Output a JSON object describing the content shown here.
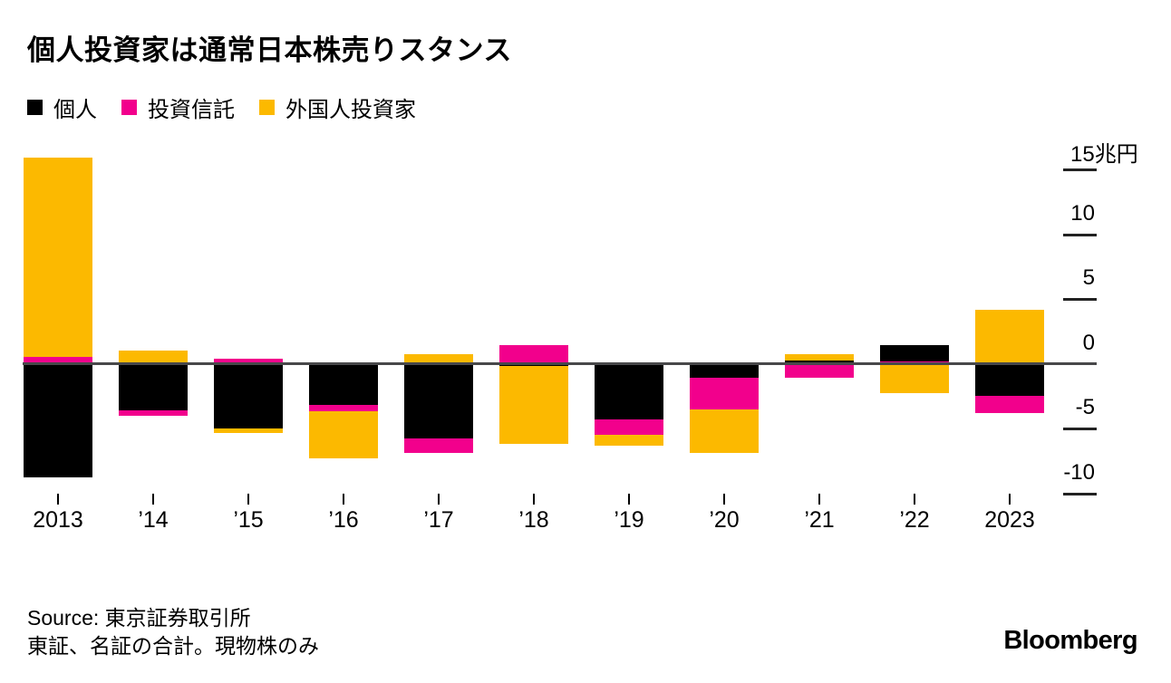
{
  "title": "個人投資家は通常日本株売りスタンス",
  "legend": [
    {
      "key": "individual",
      "label": "個人",
      "color": "#000000"
    },
    {
      "key": "trusts",
      "label": "投資信託",
      "color": "#F2008C"
    },
    {
      "key": "foreign",
      "label": "外国人投資家",
      "color": "#FCB900"
    }
  ],
  "chart_data": {
    "type": "bar",
    "stacked": true,
    "title": "個人投資家は通常日本株売りスタンス",
    "value_unit": "兆円",
    "categories": [
      "2013",
      "’14",
      "’15",
      "’16",
      "’17",
      "’18",
      "’19",
      "’20",
      "’21",
      "’22",
      "2023"
    ],
    "series": [
      {
        "key": "individual",
        "name": "個人",
        "color": "#000000",
        "values": [
          -8.8,
          -3.6,
          -5.0,
          -3.2,
          -5.8,
          -0.2,
          -4.3,
          -1.1,
          0.25,
          1.2,
          -2.5
        ]
      },
      {
        "key": "trusts",
        "name": "投資信託",
        "color": "#F2008C",
        "values": [
          0.5,
          -0.4,
          0.4,
          -0.45,
          -1.1,
          1.4,
          -1.2,
          -2.4,
          -1.05,
          0.2,
          -1.3
        ]
      },
      {
        "key": "foreign",
        "name": "外国人投資家",
        "color": "#FCB900",
        "values": [
          15.4,
          1.0,
          -0.35,
          -3.65,
          0.75,
          -6.0,
          -0.8,
          -3.4,
          0.5,
          -2.25,
          4.15
        ]
      }
    ],
    "y_ticks": [
      15,
      10,
      5,
      0,
      -5,
      -10
    ],
    "y_tick_labels": [
      "15兆円",
      "10",
      "5",
      "0",
      "-5",
      "-10"
    ],
    "ylim": [
      -10.5,
      16
    ],
    "grid": false,
    "legend_position": "top",
    "axis_side": "right"
  },
  "source": {
    "line1": "Source: 東京証券取引所",
    "line2": "東証、名証の合計。現物株のみ"
  },
  "branding": {
    "logo_text": "Bloomberg"
  }
}
